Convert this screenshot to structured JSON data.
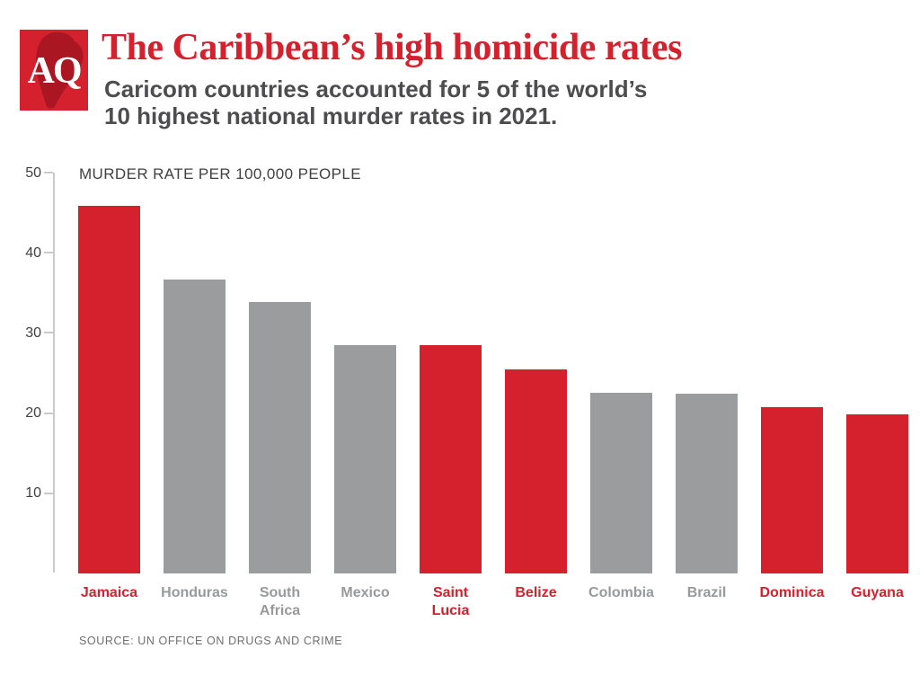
{
  "header": {
    "logo_text": "AQ",
    "title": "The Caribbean’s high homicide rates",
    "subtitle_line1": "Caricom countries accounted for 5 of the world’s",
    "subtitle_line2": "10 highest national murder rates in 2021."
  },
  "chart_data": {
    "type": "bar",
    "title": "MURDER RATE PER 100,000 PEOPLE",
    "xlabel": "",
    "ylabel": "Murder rate per 100,000 people",
    "ylim": [
      0,
      50
    ],
    "yticks": [
      10,
      20,
      30,
      40,
      50
    ],
    "grid": false,
    "legend": false,
    "categories": [
      "Jamaica",
      "Honduras",
      "South Africa",
      "Mexico",
      "Saint Lucia",
      "Belize",
      "Colombia",
      "Brazil",
      "Dominica",
      "Guyana"
    ],
    "values": [
      45.9,
      36.7,
      33.9,
      28.5,
      28.5,
      25.5,
      22.5,
      22.4,
      20.7,
      19.8
    ],
    "caricom_highlight": [
      true,
      false,
      false,
      false,
      true,
      true,
      false,
      false,
      true,
      true
    ]
  },
  "footer": {
    "source": "SOURCE: UN OFFICE ON DRUGS AND CRIME"
  },
  "colors": {
    "accent_red": "#D5212E",
    "bar_gray": "#9B9C9E",
    "label_gray": "#97999B",
    "subtitle_gray": "#4D4D4F",
    "axis_text": "#414042",
    "source_gray": "#6D6E71",
    "axis_line": "#C9CACB",
    "logo_map_red": "#AA1622"
  }
}
